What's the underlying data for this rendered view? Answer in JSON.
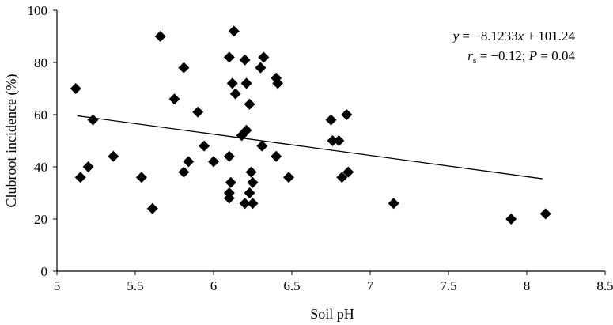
{
  "chart_data": {
    "type": "scatter",
    "xlabel": "Soil pH",
    "ylabel": "Clubroot incidence (%)",
    "xlim": [
      5,
      8.5
    ],
    "ylim": [
      0,
      100
    ],
    "xticks": [
      "5",
      "5.5",
      "6",
      "6.5",
      "7",
      "7.5",
      "8",
      "8.5"
    ],
    "yticks": [
      "0",
      "20",
      "40",
      "60",
      "80",
      "100"
    ],
    "grid": false,
    "marker": "diamond",
    "marker_color": "#000000",
    "annotation": {
      "equation": {
        "y_var": "y",
        "equals": " = −8.1233",
        "x_var": "x",
        "rest": " + 101.24"
      },
      "stats": {
        "r": "r",
        "r_sub": "s",
        "r_value": " = −0.12; ",
        "p_var": "P",
        "p_value": " = 0.04"
      }
    },
    "trendline": {
      "slope": -8.1233,
      "intercept": 101.24,
      "x_range": [
        5.13,
        8.1
      ]
    },
    "points": [
      {
        "x": 5.12,
        "y": 70
      },
      {
        "x": 5.15,
        "y": 36
      },
      {
        "x": 5.2,
        "y": 40
      },
      {
        "x": 5.23,
        "y": 58
      },
      {
        "x": 5.36,
        "y": 44
      },
      {
        "x": 5.54,
        "y": 36
      },
      {
        "x": 5.61,
        "y": 24
      },
      {
        "x": 5.66,
        "y": 90
      },
      {
        "x": 5.75,
        "y": 66
      },
      {
        "x": 5.81,
        "y": 78
      },
      {
        "x": 5.81,
        "y": 38
      },
      {
        "x": 5.84,
        "y": 42
      },
      {
        "x": 5.9,
        "y": 61
      },
      {
        "x": 5.94,
        "y": 48
      },
      {
        "x": 6.0,
        "y": 42
      },
      {
        "x": 6.1,
        "y": 82
      },
      {
        "x": 6.1,
        "y": 44
      },
      {
        "x": 6.11,
        "y": 34
      },
      {
        "x": 6.1,
        "y": 30
      },
      {
        "x": 6.1,
        "y": 28
      },
      {
        "x": 6.13,
        "y": 92
      },
      {
        "x": 6.12,
        "y": 72
      },
      {
        "x": 6.14,
        "y": 68
      },
      {
        "x": 6.18,
        "y": 52
      },
      {
        "x": 6.2,
        "y": 81
      },
      {
        "x": 6.2,
        "y": 26
      },
      {
        "x": 6.21,
        "y": 54
      },
      {
        "x": 6.21,
        "y": 72
      },
      {
        "x": 6.23,
        "y": 64
      },
      {
        "x": 6.23,
        "y": 30
      },
      {
        "x": 6.24,
        "y": 38
      },
      {
        "x": 6.25,
        "y": 34
      },
      {
        "x": 6.25,
        "y": 26
      },
      {
        "x": 6.3,
        "y": 78
      },
      {
        "x": 6.31,
        "y": 48
      },
      {
        "x": 6.32,
        "y": 82
      },
      {
        "x": 6.4,
        "y": 74
      },
      {
        "x": 6.41,
        "y": 72
      },
      {
        "x": 6.4,
        "y": 44
      },
      {
        "x": 6.48,
        "y": 36
      },
      {
        "x": 6.75,
        "y": 58
      },
      {
        "x": 6.76,
        "y": 50
      },
      {
        "x": 6.8,
        "y": 50
      },
      {
        "x": 6.82,
        "y": 36
      },
      {
        "x": 6.85,
        "y": 60
      },
      {
        "x": 6.86,
        "y": 38
      },
      {
        "x": 7.15,
        "y": 26
      },
      {
        "x": 7.9,
        "y": 20
      },
      {
        "x": 8.12,
        "y": 22
      }
    ]
  }
}
